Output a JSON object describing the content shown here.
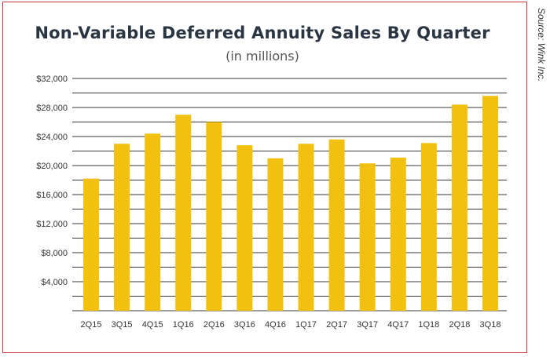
{
  "source": "Source: Wink Inc.",
  "chart_data": {
    "type": "bar",
    "title": "Non-Variable Deferred Annuity Sales By Quarter",
    "subtitle": "(in millions)",
    "xlabel": "",
    "ylabel": "",
    "categories": [
      "2Q15",
      "3Q15",
      "4Q15",
      "1Q16",
      "2Q16",
      "3Q16",
      "4Q16",
      "1Q17",
      "2Q17",
      "3Q17",
      "4Q17",
      "1Q18",
      "2Q18",
      "3Q18"
    ],
    "values": [
      18200,
      23000,
      24400,
      27000,
      26000,
      22800,
      21000,
      23000,
      23600,
      20300,
      21100,
      23100,
      28400,
      29600
    ],
    "ylim": [
      0,
      32000
    ],
    "yticks": [
      4000,
      8000,
      12000,
      16000,
      20000,
      24000,
      28000,
      32000
    ],
    "ytick_labels": [
      "$4,000",
      "$8,000",
      "$12,000",
      "$16,000",
      "$20,000",
      "$24,000",
      "$28,000",
      "$32,000"
    ],
    "grid": true,
    "legend": "none",
    "bar_color": "#f2c00f",
    "grid_color": "#3a3a3a",
    "frame_color": "#c9383f"
  }
}
